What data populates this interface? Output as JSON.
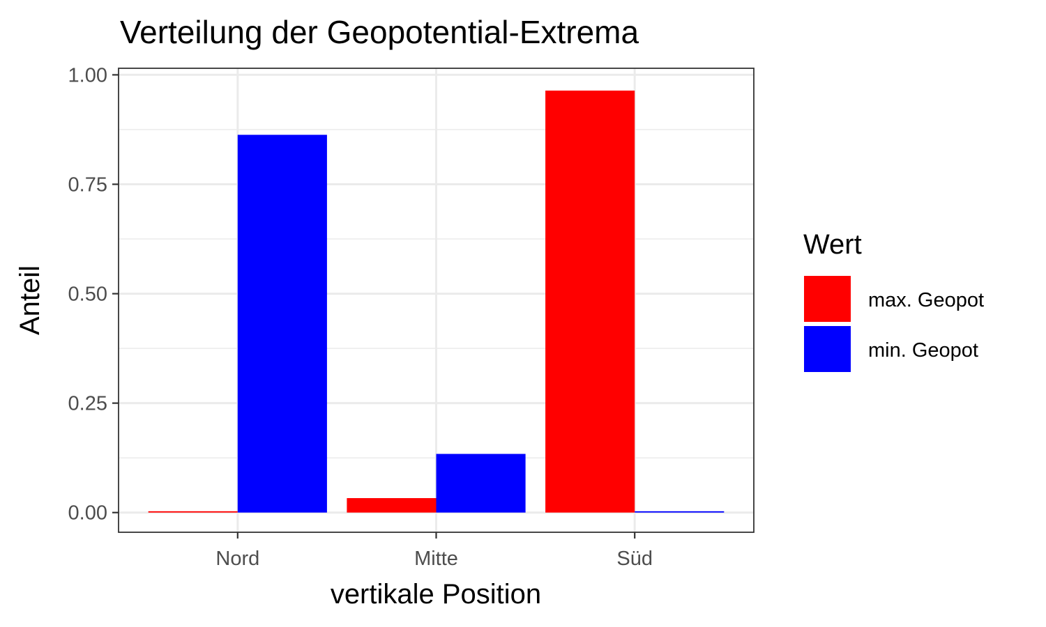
{
  "chart_data": {
    "type": "bar",
    "title": "Verteilung der Geopotential-Extrema",
    "xlabel": "vertikale Position",
    "ylabel": "Anteil",
    "categories": [
      "Nord",
      "Mitte",
      "Süd"
    ],
    "series": [
      {
        "name": "max. Geopot",
        "color": "#ff0000",
        "values": [
          0.003,
          0.033,
          0.964
        ]
      },
      {
        "name": "min. Geopot",
        "color": "#0000ff",
        "values": [
          0.863,
          0.134,
          0.003
        ]
      }
    ],
    "ylim": [
      -0.045,
      1.015
    ],
    "yticks": [
      0.0,
      0.25,
      0.5,
      0.75,
      1.0
    ],
    "ytick_labels": [
      "0.00",
      "0.25",
      "0.50",
      "0.75",
      "1.00"
    ],
    "grid": true,
    "legend": {
      "title": "Wert",
      "position": "right"
    }
  }
}
